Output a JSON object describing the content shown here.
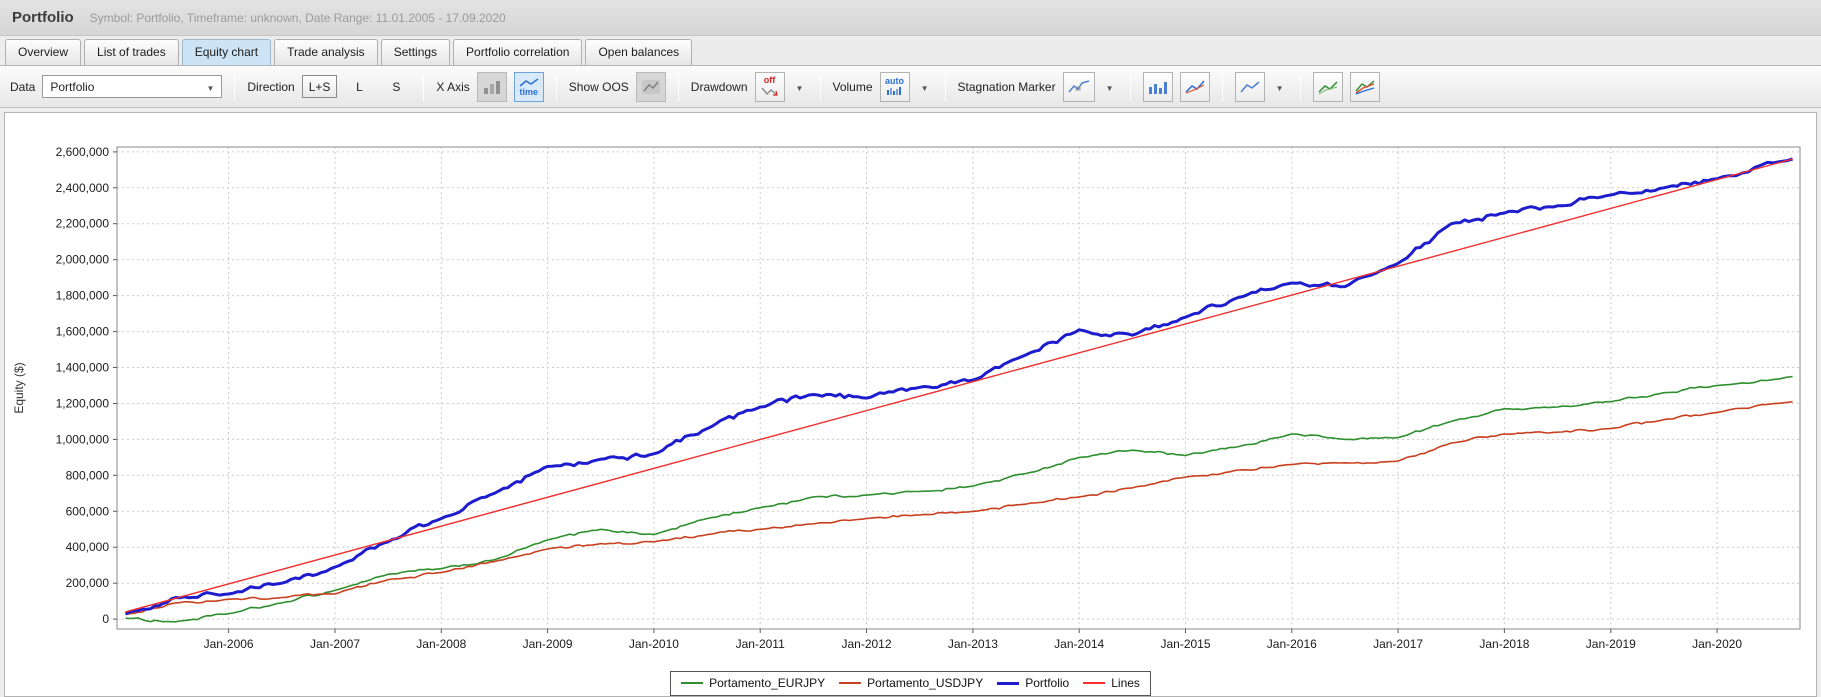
{
  "header": {
    "title": "Portfolio",
    "subtitle": "Symbol: Portfolio, Timeframe: unknown, Date Range: 11.01.2005 - 17.09.2020"
  },
  "tabs": {
    "items": [
      {
        "label": "Overview"
      },
      {
        "label": "List of trades"
      },
      {
        "label": "Equity chart"
      },
      {
        "label": "Trade analysis"
      },
      {
        "label": "Settings"
      },
      {
        "label": "Portfolio correlation"
      },
      {
        "label": "Open balances"
      }
    ],
    "active": "Equity chart"
  },
  "toolbar": {
    "data": {
      "label": "Data",
      "value": "Portfolio"
    },
    "direction": {
      "label": "Direction",
      "options": [
        "L+S",
        "L",
        "S"
      ],
      "selected": "L+S"
    },
    "xaxis": {
      "label": "X Axis",
      "time_badge": "time"
    },
    "show_oos": {
      "label": "Show OOS"
    },
    "drawdown": {
      "label": "Drawdown",
      "value": "off"
    },
    "volume": {
      "label": "Volume",
      "value": "auto"
    },
    "stagnation": {
      "label": "Stagnation Marker"
    }
  },
  "chart_data": {
    "type": "line",
    "title": "",
    "xlabel": "",
    "ylabel": "Equity ($)",
    "grid": true,
    "legend_position": "bottom",
    "xlim": [
      2004.95,
      2020.78
    ],
    "ylim": [
      -55000,
      2627000
    ],
    "ytick_min": 0,
    "ytick_max": 2600000,
    "ytick_step": 200000,
    "xticks": [
      {
        "v": 2006,
        "label": "Jan-2006"
      },
      {
        "v": 2007,
        "label": "Jan-2007"
      },
      {
        "v": 2008,
        "label": "Jan-2008"
      },
      {
        "v": 2009,
        "label": "Jan-2009"
      },
      {
        "v": 2010,
        "label": "Jan-2010"
      },
      {
        "v": 2011,
        "label": "Jan-2011"
      },
      {
        "v": 2012,
        "label": "Jan-2012"
      },
      {
        "v": 2013,
        "label": "Jan-2013"
      },
      {
        "v": 2014,
        "label": "Jan-2014"
      },
      {
        "v": 2015,
        "label": "Jan-2015"
      },
      {
        "v": 2016,
        "label": "Jan-2016"
      },
      {
        "v": 2017,
        "label": "Jan-2017"
      },
      {
        "v": 2018,
        "label": "Jan-2018"
      },
      {
        "v": 2019,
        "label": "Jan-2019"
      },
      {
        "v": 2020,
        "label": "Jan-2020"
      }
    ],
    "x": [
      2005.03,
      2005.5,
      2006.0,
      2006.5,
      2007.0,
      2007.5,
      2008.0,
      2008.5,
      2009.0,
      2009.5,
      2010.0,
      2010.5,
      2011.0,
      2011.5,
      2012.0,
      2012.5,
      2013.0,
      2013.5,
      2014.0,
      2014.5,
      2015.0,
      2015.5,
      2016.0,
      2016.5,
      2017.0,
      2017.5,
      2018.0,
      2018.5,
      2019.0,
      2019.5,
      2020.0,
      2020.71
    ],
    "series": [
      {
        "name": "Portamento_EURJPY",
        "color": "#2f8f2f",
        "width": 1.6,
        "values": [
          5000,
          -15000,
          30000,
          90000,
          160000,
          250000,
          280000,
          330000,
          440000,
          500000,
          470000,
          560000,
          620000,
          680000,
          690000,
          710000,
          740000,
          810000,
          900000,
          940000,
          910000,
          960000,
          1030000,
          1000000,
          1010000,
          1100000,
          1170000,
          1180000,
          1210000,
          1260000,
          1300000,
          1350000
        ]
      },
      {
        "name": "Portamento_USDJPY",
        "color": "#c8401f",
        "width": 1.6,
        "values": [
          25000,
          90000,
          110000,
          120000,
          140000,
          220000,
          260000,
          320000,
          390000,
          420000,
          430000,
          470000,
          500000,
          530000,
          560000,
          580000,
          600000,
          640000,
          680000,
          730000,
          790000,
          830000,
          860000,
          870000,
          880000,
          980000,
          1030000,
          1040000,
          1060000,
          1110000,
          1150000,
          1210000
        ]
      },
      {
        "name": "Portfolio",
        "color": "#1d1dce",
        "width": 3,
        "values": [
          30000,
          120000,
          140000,
          200000,
          290000,
          430000,
          560000,
          700000,
          850000,
          890000,
          920000,
          1060000,
          1180000,
          1250000,
          1230000,
          1290000,
          1330000,
          1470000,
          1610000,
          1580000,
          1680000,
          1790000,
          1870000,
          1850000,
          1980000,
          2200000,
          2260000,
          2300000,
          2360000,
          2400000,
          2450000,
          2560000
        ]
      }
    ],
    "trend": {
      "name": "Lines",
      "color": "#f03030",
      "width": 1.4,
      "x": [
        2005.03,
        2020.71
      ],
      "values": [
        40000,
        2560000
      ]
    },
    "legend": [
      {
        "label": "Portamento_EURJPY",
        "color": "#2f8f2f"
      },
      {
        "label": "Portamento_USDJPY",
        "color": "#c8401f"
      },
      {
        "label": "Portfolio",
        "color": "#1d1dce"
      },
      {
        "label": "Lines",
        "color": "#f03030"
      }
    ]
  }
}
